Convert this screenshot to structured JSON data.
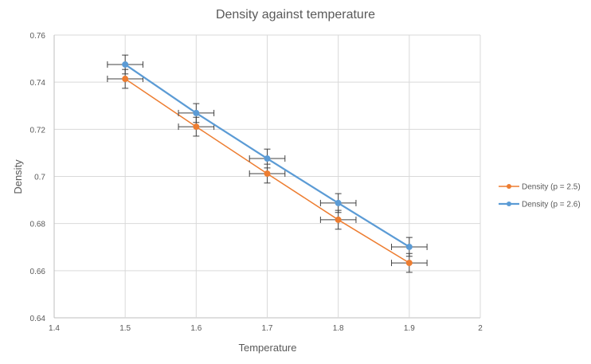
{
  "chart_data": {
    "type": "scatter",
    "title": "Density against temperature",
    "xlabel": "Temperature",
    "ylabel": "Density",
    "xlim": [
      1.4,
      2
    ],
    "ylim": [
      0.64,
      0.76
    ],
    "x_ticks": [
      "1.4",
      "1.5",
      "1.6",
      "1.7",
      "1.8",
      "1.9",
      "2"
    ],
    "y_ticks": [
      "0.64",
      "0.66",
      "0.68",
      "0.7",
      "0.72",
      "0.74",
      "0.76"
    ],
    "x_tick_values": [
      1.4,
      1.5,
      1.6,
      1.7,
      1.8,
      1.9,
      2.0
    ],
    "y_tick_values": [
      0.64,
      0.66,
      0.68,
      0.7,
      0.72,
      0.74,
      0.76
    ],
    "grid": true,
    "legend_position": "right",
    "x_error": 0.025,
    "y_error": 0.004,
    "series": [
      {
        "name": "Density (p = 2.5)",
        "color": "#ED7D31",
        "x": [
          1.5,
          1.6,
          1.7,
          1.8,
          1.9
        ],
        "y": [
          0.7414,
          0.7211,
          0.7012,
          0.6816,
          0.6633
        ]
      },
      {
        "name": "Density (p = 2.6)",
        "color": "#5B9BD5",
        "x": [
          1.5,
          1.6,
          1.7,
          1.8,
          1.9
        ],
        "y": [
          0.7475,
          0.7269,
          0.7076,
          0.6887,
          0.6701
        ]
      }
    ]
  }
}
